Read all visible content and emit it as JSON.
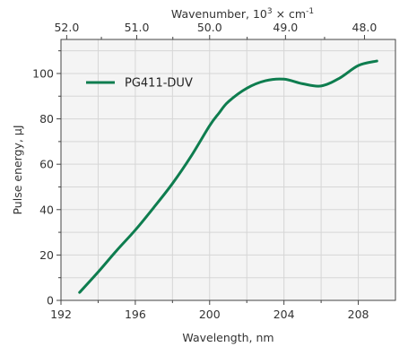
{
  "chart_data": {
    "type": "line",
    "xlabel": "Wavelength, nm",
    "ylabel": "Pulse energy, μJ",
    "top_axis": {
      "label_main": "Wavenumber, 10",
      "label_sup1": "3",
      "label_mid": " × cm",
      "label_sup2": "-1",
      "ticks": [
        52.0,
        51.0,
        50.0,
        49.0,
        48.0
      ],
      "tick_labels": [
        "52.0",
        "51.0",
        "50.0",
        "49.0",
        "48.0"
      ]
    },
    "xlim": [
      192,
      210
    ],
    "ylim": [
      0,
      115
    ],
    "x_ticks": [
      192,
      196,
      200,
      204,
      208
    ],
    "y_ticks": [
      0,
      20,
      40,
      60,
      80,
      100
    ],
    "grid": true,
    "legend_position": "top-left",
    "series": [
      {
        "name": "PG411-DUV",
        "color": "#0e7d4f",
        "x": [
          193.0,
          194.0,
          195.0,
          196.0,
          197.0,
          198.0,
          199.0,
          200.0,
          200.5,
          201.0,
          202.0,
          203.0,
          204.0,
          205.0,
          206.0,
          207.0,
          208.0,
          209.0
        ],
        "y": [
          3.5,
          12.5,
          22,
          31,
          41,
          51.5,
          63.5,
          77,
          82.5,
          87.5,
          93.5,
          96.8,
          97.5,
          95.5,
          94.5,
          98,
          103.5,
          105.5
        ]
      }
    ]
  },
  "colors": {
    "plot_background": "#f4f4f4",
    "grid": "#d6d6d6",
    "axis": "#444444"
  }
}
